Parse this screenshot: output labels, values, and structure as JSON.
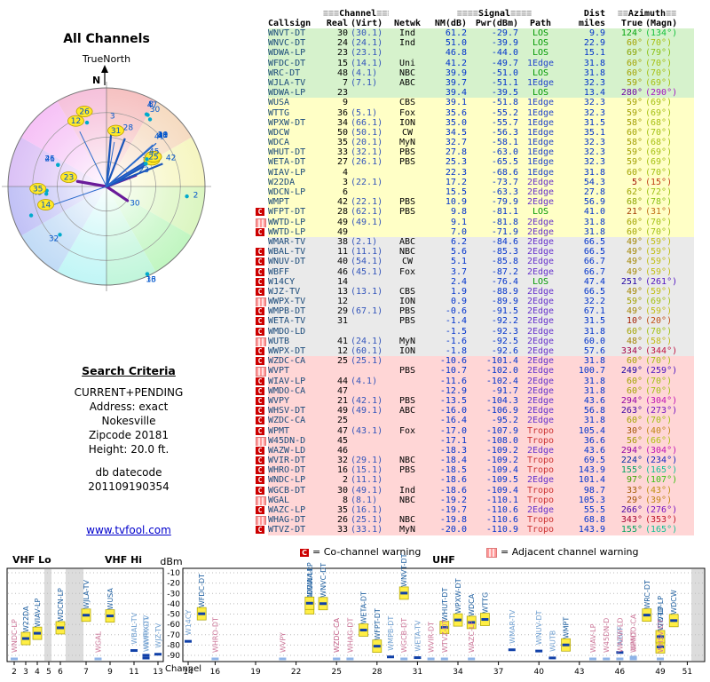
{
  "radar": {
    "title": "All Channels",
    "north_label": "TrueNorth",
    "north_letter": "N"
  },
  "search": {
    "heading": "Search Criteria",
    "lines": [
      "CURRENT+PENDING",
      "Address: exact",
      "Nokesville",
      "Zipcode 20181",
      "Height: 20.0 ft."
    ],
    "db_label": "db datecode",
    "db_value": "201109190354"
  },
  "link": {
    "text": "www.tvfool.com"
  },
  "legend": {
    "co_symbol": "C",
    "co_text": "= Co-channel warning",
    "adj_text": "= Adjacent channel warning"
  },
  "table": {
    "deco": "≡≡≡",
    "group_headers": {
      "channel": "Channel",
      "signal": "Signal",
      "dist": "Dist",
      "azimuth": "Azimuth"
    },
    "columns": {
      "callsign": "Callsign",
      "real": "Real",
      "virt": "(Virt)",
      "netwk": "Netwk",
      "nm": "NM(dB)",
      "pwr": "Pwr(dBm)",
      "path": "Path",
      "miles": "miles",
      "true": "True",
      "magn": "(Magn)"
    },
    "band_colors": {
      "green": "#d6f2cc",
      "yellow": "#ffffc6",
      "gray": "#eaeaea",
      "pink": "#ffd6d6"
    },
    "path_colors": {
      "LOS": "#009900",
      "1Edge": "#2244cc",
      "2Edge": "#6633cc",
      "Tropo": "#cc3333"
    }
  },
  "spectrum": {
    "dbm_label": "dBm",
    "channel_label": "Channel",
    "band_labels": {
      "vhf_lo": "VHF Lo",
      "vhf_hi": "VHF Hi",
      "uhf": "UHF"
    },
    "dbm_ticks": [
      -10,
      -20,
      -30,
      -40,
      -50,
      -60,
      -70,
      -80,
      -90
    ],
    "vhf_tick_channels": [
      2,
      3,
      4,
      5,
      6,
      7,
      9,
      11,
      13
    ],
    "uhf_tick_channels": [
      14,
      16,
      19,
      22,
      25,
      28,
      31,
      34,
      37,
      40,
      43,
      46,
      49,
      51
    ]
  },
  "chart_data": {
    "type": "table",
    "description": "TV reception report: station list with polar (azimuth/distance) plot and channel/power spectrum plot",
    "radar_plot": {
      "type": "polar",
      "angle": "az_true_deg",
      "radius": "dist_miles",
      "max_miles": 150
    },
    "spectrum_plot": {
      "type": "scatter",
      "x": "real_ch",
      "y": "pwr_dbm",
      "ylim": [
        -95,
        -5
      ],
      "panels": {
        "vhf": [
          2,
          13
        ],
        "uhf": [
          14,
          51
        ]
      }
    },
    "station_fields": [
      "marker",
      "callsign",
      "real_ch",
      "virt_ch",
      "network",
      "nm_db",
      "pwr_dbm",
      "path",
      "dist_miles",
      "az_true_deg",
      "az_magn_deg",
      "radar_highlight"
    ],
    "stations": [
      [
        "",
        "WNVT-DT",
        "30",
        "(30.1)",
        "Ind",
        61.2,
        -29.7,
        "LOS",
        9.9,
        124,
        134,
        0
      ],
      [
        "",
        "WNVC-DT",
        "24",
        "(24.1)",
        "Ind",
        51.0,
        -39.9,
        "LOS",
        22.9,
        60,
        70,
        0
      ],
      [
        "",
        "WDWA-LP",
        "23",
        "(23.1)",
        "",
        46.8,
        -44.0,
        "LOS",
        15.1,
        69,
        79,
        0
      ],
      [
        "",
        "WFDC-DT",
        "15",
        "(14.1)",
        "Uni",
        41.2,
        -49.7,
        "1Edge",
        31.8,
        60,
        70,
        0
      ],
      [
        "",
        "WRC-DT",
        "48",
        "(4.1)",
        "NBC",
        39.9,
        -51.0,
        "LOS",
        31.8,
        60,
        70,
        0
      ],
      [
        "",
        "WJLA-TV",
        "7",
        "(7.1)",
        "ABC",
        39.7,
        -51.1,
        "1Edge",
        32.3,
        59,
        69,
        0
      ],
      [
        "",
        "WDWA-LP",
        "23",
        "",
        "",
        39.4,
        -39.5,
        "LOS",
        13.4,
        280,
        290,
        1
      ],
      [
        "",
        "WUSA",
        "9",
        "",
        "CBS",
        39.1,
        -51.8,
        "1Edge",
        32.3,
        59,
        69,
        0
      ],
      [
        "",
        "WTTG",
        "36",
        "(5.1)",
        "Fox",
        35.6,
        -55.2,
        "1Edge",
        32.3,
        59,
        69,
        0
      ],
      [
        "",
        "WPXW-DT",
        "34",
        "(66.1)",
        "ION",
        35.0,
        -55.7,
        "1Edge",
        31.5,
        58,
        68,
        0
      ],
      [
        "",
        "WDCW",
        "50",
        "(50.1)",
        "CW",
        34.5,
        -56.3,
        "1Edge",
        35.1,
        60,
        70,
        0
      ],
      [
        "",
        "WDCA",
        "35",
        "(20.1)",
        "MyN",
        32.7,
        -58.1,
        "1Edge",
        32.3,
        58,
        68,
        0
      ],
      [
        "",
        "WHUT-DT",
        "33",
        "(32.1)",
        "PBS",
        27.8,
        -63.0,
        "1Edge",
        32.3,
        59,
        69,
        0
      ],
      [
        "",
        "WETA-DT",
        "27",
        "(26.1)",
        "PBS",
        25.3,
        -65.5,
        "1Edge",
        32.3,
        59,
        69,
        0
      ],
      [
        "",
        "WIAV-LP",
        "4",
        "",
        "",
        22.3,
        -68.6,
        "1Edge",
        31.8,
        60,
        70,
        0
      ],
      [
        "",
        "W22DA",
        "3",
        "(22.1)",
        "",
        17.2,
        -73.7,
        "2Edge",
        54.3,
        5,
        15,
        0
      ],
      [
        "",
        "WDCN-LP",
        "6",
        "",
        "",
        15.5,
        -63.3,
        "2Edge",
        27.8,
        62,
        72,
        1
      ],
      [
        "",
        "WMPT",
        "42",
        "(22.1)",
        "PBS",
        10.9,
        -79.9,
        "2Edge",
        56.9,
        68,
        78,
        0
      ],
      [
        "C",
        "WFPT-DT",
        "28",
        "(62.1)",
        "PBS",
        9.8,
        -81.1,
        "LOS",
        41.0,
        21,
        31,
        0
      ],
      [
        "A",
        "WWTD-LP",
        "49",
        "(49.1)",
        "",
        9.1,
        -81.8,
        "2Edge",
        31.8,
        60,
        70,
        0
      ],
      [
        "C",
        "WWTD-LP",
        "49",
        "",
        "",
        7.0,
        -71.9,
        "2Edge",
        31.8,
        60,
        70,
        1
      ],
      [
        "",
        "WMAR-TV",
        "38",
        "(2.1)",
        "ABC",
        6.2,
        -84.6,
        "2Edge",
        66.5,
        49,
        59,
        0
      ],
      [
        "C",
        "WBAL-TV",
        "11",
        "(11.1)",
        "NBC",
        5.6,
        -85.3,
        "2Edge",
        66.5,
        49,
        59,
        0
      ],
      [
        "C",
        "WNUV-DT",
        "40",
        "(54.1)",
        "CW",
        5.1,
        -85.8,
        "2Edge",
        66.7,
        49,
        59,
        0
      ],
      [
        "C",
        "WBFF",
        "46",
        "(45.1)",
        "Fox",
        3.7,
        -87.2,
        "2Edge",
        66.7,
        49,
        59,
        0
      ],
      [
        "C",
        "W14CY",
        "14",
        "",
        "",
        2.4,
        -76.4,
        "LOS",
        47.4,
        251,
        261,
        1
      ],
      [
        "C",
        "WJZ-TV",
        "13",
        "(13.1)",
        "CBS",
        1.9,
        -88.9,
        "2Edge",
        66.5,
        49,
        59,
        0
      ],
      [
        "A",
        "WWPX-TV",
        "12",
        "",
        "ION",
        0.9,
        -89.9,
        "2Edge",
        32.2,
        59,
        69,
        0
      ],
      [
        "C",
        "WMPB-DT",
        "29",
        "(67.1)",
        "PBS",
        -0.6,
        -91.5,
        "2Edge",
        67.1,
        49,
        59,
        0
      ],
      [
        "C",
        "WETA-TV",
        "31",
        "",
        "PBS",
        -1.4,
        -92.2,
        "2Edge",
        31.5,
        10,
        20,
        1
      ],
      [
        "C",
        "WMDO-LD",
        "",
        "",
        "",
        -1.5,
        -92.3,
        "2Edge",
        31.8,
        60,
        70,
        0
      ],
      [
        "A",
        "WUTB",
        "41",
        "(24.1)",
        "MyN",
        -1.6,
        -92.5,
        "2Edge",
        60.0,
        48,
        58,
        0
      ],
      [
        "C",
        "WWPX-DT",
        "12",
        "(60.1)",
        "ION",
        -1.8,
        -92.6,
        "2Edge",
        57.6,
        334,
        344,
        1
      ],
      [
        "C",
        "WZDC-CA",
        "25",
        "(25.1)",
        "",
        -10.6,
        -101.4,
        "2Edge",
        31.8,
        60,
        70,
        0
      ],
      [
        "A",
        "WVPT",
        "",
        "",
        "PBS",
        -10.7,
        -102.0,
        "2Edge",
        100.7,
        249,
        259,
        0
      ],
      [
        "C",
        "WIAV-LP",
        "44",
        "(4.1)",
        "",
        -11.6,
        -102.4,
        "2Edge",
        31.8,
        60,
        70,
        0
      ],
      [
        "C",
        "WMDO-CA",
        "47",
        "",
        "",
        -12.9,
        -91.7,
        "2Edge",
        31.8,
        60,
        70,
        1
      ],
      [
        "C",
        "WVPY",
        "21",
        "(42.1)",
        "PBS",
        -13.5,
        -104.3,
        "2Edge",
        43.6,
        294,
        304,
        0
      ],
      [
        "C",
        "WHSV-DT",
        "49",
        "(49.1)",
        "ABC",
        -16.0,
        -106.9,
        "2Edge",
        56.8,
        263,
        273,
        0
      ],
      [
        "C",
        "WZDC-CA",
        "25",
        "",
        "",
        -16.4,
        -95.2,
        "2Edge",
        31.8,
        60,
        70,
        1
      ],
      [
        "C",
        "WPMT",
        "47",
        "(43.1)",
        "Fox",
        -17.0,
        -107.9,
        "Tropo",
        105.4,
        30,
        40,
        0
      ],
      [
        "A",
        "W45DN-D",
        "45",
        "",
        "",
        -17.1,
        -108.0,
        "Tropo",
        36.6,
        56,
        66,
        0
      ],
      [
        "C",
        "WAZW-LD",
        "46",
        "",
        "",
        -18.3,
        -109.2,
        "2Edge",
        43.6,
        294,
        304,
        0
      ],
      [
        "C",
        "WVIR-DT",
        "32",
        "(29.1)",
        "NBC",
        -18.4,
        -109.2,
        "Tropo",
        69.5,
        224,
        234,
        0
      ],
      [
        "C",
        "WHRO-DT",
        "16",
        "(15.1)",
        "PBS",
        -18.5,
        -109.4,
        "Tropo",
        143.9,
        155,
        165,
        0
      ],
      [
        "C",
        "WNDC-LP",
        "2",
        "(11.1)",
        "",
        -18.6,
        -109.5,
        "2Edge",
        101.4,
        97,
        107,
        0
      ],
      [
        "C",
        "WGCB-DT",
        "30",
        "(49.1)",
        "Ind",
        -18.6,
        -109.4,
        "Tropo",
        98.7,
        33,
        43,
        0
      ],
      [
        "A",
        "WGAL",
        "8",
        "(8.1)",
        "NBC",
        -19.2,
        -110.1,
        "Tropo",
        105.3,
        29,
        39,
        0
      ],
      [
        "C",
        "WAZC-LP",
        "35",
        "(16.1)",
        "",
        -19.7,
        -110.6,
        "2Edge",
        55.5,
        266,
        276,
        1
      ],
      [
        "A",
        "WHAG-DT",
        "26",
        "(25.1)",
        "NBC",
        -19.8,
        -110.6,
        "Tropo",
        68.8,
        343,
        353,
        1
      ],
      [
        "C",
        "WTVZ-DT",
        "33",
        "(33.1)",
        "MyN",
        -20.0,
        -110.9,
        "Tropo",
        143.9,
        155,
        165,
        0
      ]
    ]
  }
}
